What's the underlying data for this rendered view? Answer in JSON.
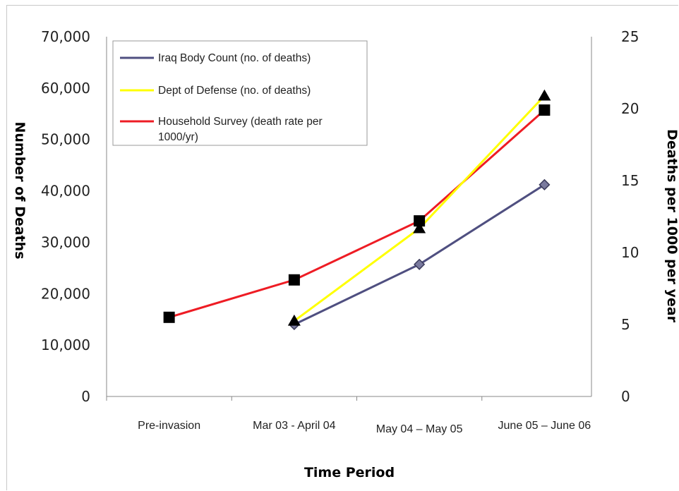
{
  "chart_data": {
    "type": "line",
    "title": "",
    "xlabel": "Time Period",
    "ylabel": "Number of Deaths",
    "y2label": "Deaths per 1000 per year",
    "categories": [
      "Pre-invasion",
      "Mar 03 - April 04",
      "May 04 – May  05",
      "June 05 – June 06"
    ],
    "ylim": [
      0,
      70000
    ],
    "y2lim": [
      0,
      25
    ],
    "yticks": [
      "0",
      "10,000",
      "20,000",
      "30,000",
      "40,000",
      "50,000",
      "60,000",
      "70,000"
    ],
    "y2ticks": [
      "0",
      "5",
      "10",
      "15",
      "20",
      "25"
    ],
    "grid": false,
    "legend_position": "top-left",
    "series": [
      {
        "name": "Iraq Body Count (no. of deaths)",
        "axis": "left",
        "color": "#4f4f80",
        "marker": "diamond",
        "values": [
          null,
          14000,
          25700,
          41200
        ]
      },
      {
        "name": "Dept of Defense (no. of deaths)",
        "axis": "left",
        "color": "#ffff00",
        "marker": "triangle",
        "values": [
          null,
          14700,
          32700,
          58500
        ]
      },
      {
        "name": "Household Survey (death rate per 1000/yr)",
        "axis": "right",
        "color": "#ee1c24",
        "marker": "square",
        "values": [
          5.5,
          8.1,
          12.2,
          19.9
        ]
      }
    ]
  }
}
